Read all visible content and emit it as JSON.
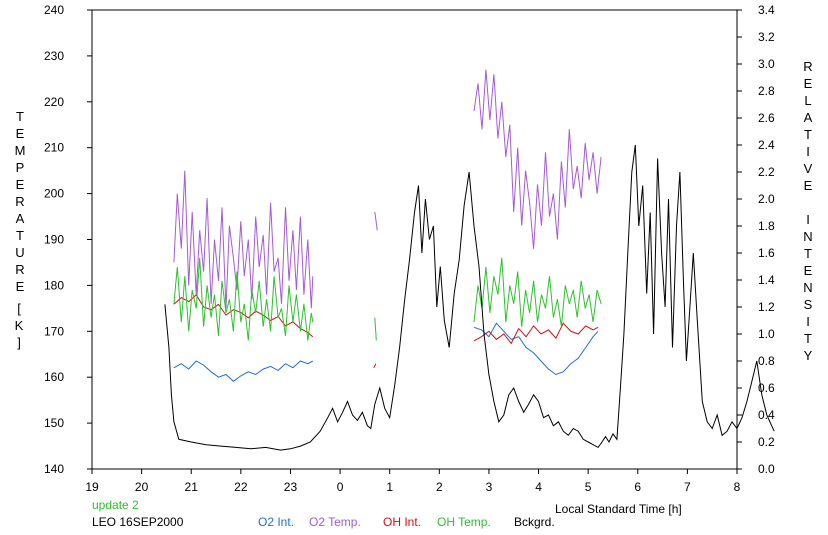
{
  "chart_data": {
    "type": "line",
    "xlabel": "Local Standard Time [h]",
    "ylabel_left": "TEMPERATURE",
    "ylabel_left_unit": "[K]",
    "ylabel_right": "RELATIVE INTENSITY",
    "x_range": [
      19,
      32
    ],
    "x_tick_values": [
      19,
      20,
      21,
      22,
      23,
      24,
      25,
      26,
      27,
      28,
      29,
      30,
      31,
      32
    ],
    "x_tick_labels": [
      "19",
      "20",
      "21",
      "22",
      "23",
      "0",
      "1",
      "2",
      "3",
      "4",
      "5",
      "6",
      "7",
      "8"
    ],
    "ylim_left": [
      140,
      240
    ],
    "y_ticks_left": [
      140,
      150,
      160,
      170,
      180,
      190,
      200,
      210,
      220,
      230,
      240
    ],
    "ylim_right": [
      0,
      3.4
    ],
    "y_ticks_right": [
      "0.0",
      "0.2",
      "0.4",
      "0.6",
      "0.8",
      "1.0",
      "1.2",
      "1.4",
      "1.6",
      "1.8",
      "2.0",
      "2.2",
      "2.4",
      "2.6",
      "2.8",
      "3.0",
      "3.2",
      "3.4"
    ],
    "footer": {
      "update": "update 2",
      "site_date": "LEO 16SEP2000"
    },
    "colors": {
      "o2_int": "#1f6fd0",
      "o2_temp": "#a35bd6",
      "oh_int": "#d01010",
      "oh_temp": "#2fbf2f",
      "bckgrd": "#000000",
      "update": "#2fbf2f"
    },
    "series": [
      {
        "name": "O2 Int.",
        "axis": "right",
        "segments": [
          {
            "x": [
              20.65,
              20.8,
              20.95,
              21.1,
              21.25,
              21.4,
              21.55,
              21.7,
              21.85,
              22.0,
              22.15,
              22.3,
              22.45,
              22.6,
              22.75,
              22.9,
              23.05,
              23.2,
              23.35,
              23.45
            ],
            "y": [
              0.75,
              0.78,
              0.74,
              0.8,
              0.77,
              0.72,
              0.68,
              0.7,
              0.65,
              0.69,
              0.72,
              0.7,
              0.74,
              0.76,
              0.73,
              0.78,
              0.75,
              0.8,
              0.78,
              0.8
            ]
          },
          {
            "x": [
              26.7,
              26.85,
              27.0,
              27.15,
              27.3,
              27.45,
              27.6,
              27.75,
              27.9,
              28.05,
              28.2,
              28.35,
              28.5,
              28.65,
              28.8,
              28.95,
              29.1,
              29.2
            ],
            "y": [
              1.05,
              1.03,
              0.98,
              1.08,
              1.02,
              0.96,
              0.98,
              0.9,
              0.86,
              0.8,
              0.74,
              0.7,
              0.72,
              0.78,
              0.82,
              0.9,
              0.98,
              1.02
            ]
          }
        ]
      },
      {
        "name": "O2 Temp.",
        "axis": "left",
        "segments": [
          {
            "x": [
              20.65,
              20.72,
              20.8,
              20.87,
              20.95,
              21.02,
              21.1,
              21.17,
              21.25,
              21.32,
              21.4,
              21.47,
              21.55,
              21.62,
              21.7,
              21.77,
              21.85,
              21.92,
              22.0,
              22.07,
              22.15,
              22.22,
              22.3,
              22.37,
              22.45,
              22.52,
              22.6,
              22.67,
              22.75,
              22.82,
              22.9,
              22.97,
              23.05,
              23.12,
              23.2,
              23.27,
              23.35,
              23.42,
              23.45
            ],
            "y": [
              185,
              200,
              188,
              205,
              180,
              196,
              178,
              192,
              183,
              199,
              176,
              190,
              181,
              197,
              175,
              193,
              186,
              179,
              194,
              182,
              190,
              177,
              195,
              184,
              191,
              178,
              198,
              183,
              186,
              176,
              197,
              181,
              192,
              179,
              195,
              178,
              190,
              175,
              182
            ]
          },
          {
            "x": [
              24.7,
              24.75
            ],
            "y": [
              196,
              192
            ]
          },
          {
            "x": [
              26.7,
              26.78,
              26.86,
              26.94,
              27.02,
              27.1,
              27.18,
              27.26,
              27.34,
              27.42,
              27.5,
              27.58,
              27.66,
              27.74,
              27.82,
              27.9,
              27.98,
              28.06,
              28.14,
              28.22,
              28.3,
              28.38,
              28.46,
              28.54,
              28.62,
              28.7,
              28.78,
              28.86,
              28.94,
              29.02,
              29.1,
              29.18,
              29.26
            ],
            "y": [
              218,
              224,
              214,
              227,
              216,
              226,
              212,
              220,
              208,
              215,
              196,
              210,
              193,
              205,
              198,
              188,
              202,
              193,
              209,
              195,
              200,
              190,
              207,
              197,
              214,
              201,
              206,
              199,
              211,
              203,
              209,
              200,
              208
            ]
          }
        ]
      },
      {
        "name": "OH Int.",
        "axis": "right",
        "segments": [
          {
            "x": [
              20.65,
              20.8,
              20.95,
              21.1,
              21.25,
              21.4,
              21.55,
              21.7,
              21.85,
              22.0,
              22.15,
              22.3,
              22.45,
              22.6,
              22.75,
              22.9,
              23.05,
              23.2,
              23.35,
              23.45
            ],
            "y": [
              1.22,
              1.27,
              1.24,
              1.29,
              1.2,
              1.18,
              1.22,
              1.14,
              1.18,
              1.16,
              1.12,
              1.17,
              1.14,
              1.1,
              1.13,
              1.06,
              1.09,
              1.04,
              1.01,
              0.98
            ]
          },
          {
            "x": [
              24.68,
              24.72
            ],
            "y": [
              0.75,
              0.78
            ]
          },
          {
            "x": [
              26.7,
              26.85,
              27.0,
              27.15,
              27.3,
              27.45,
              27.6,
              27.75,
              27.9,
              28.05,
              28.2,
              28.35,
              28.5,
              28.65,
              28.8,
              28.95,
              29.1,
              29.2
            ],
            "y": [
              0.95,
              0.98,
              1.02,
              0.96,
              1.0,
              0.93,
              1.04,
              0.98,
              1.06,
              1.0,
              1.03,
              0.97,
              1.08,
              1.02,
              1.0,
              1.06,
              1.03,
              1.05
            ]
          }
        ]
      },
      {
        "name": "OH Temp.",
        "axis": "left",
        "segments": [
          {
            "x": [
              20.65,
              20.72,
              20.8,
              20.87,
              20.95,
              21.02,
              21.1,
              21.17,
              21.25,
              21.32,
              21.4,
              21.47,
              21.55,
              21.62,
              21.7,
              21.77,
              21.85,
              21.92,
              22.0,
              22.07,
              22.15,
              22.22,
              22.3,
              22.37,
              22.45,
              22.52,
              22.6,
              22.67,
              22.75,
              22.82,
              22.9,
              22.97,
              23.05,
              23.12,
              23.2,
              23.27,
              23.35,
              23.42,
              23.45
            ],
            "y": [
              176,
              184,
              172,
              182,
              170,
              179,
              175,
              186,
              171,
              180,
              173,
              178,
              169,
              181,
              174,
              177,
              170,
              183,
              172,
              176,
              168,
              179,
              174,
              181,
              171,
              177,
              170,
              182,
              173,
              175,
              169,
              180,
              172,
              178,
              170,
              176,
              168,
              174,
              172
            ]
          },
          {
            "x": [
              24.7,
              24.73
            ],
            "y": [
              173,
              168
            ]
          },
          {
            "x": [
              26.7,
              26.78,
              26.86,
              26.94,
              27.02,
              27.1,
              27.18,
              27.26,
              27.34,
              27.42,
              27.5,
              27.58,
              27.66,
              27.74,
              27.82,
              27.9,
              27.98,
              28.06,
              28.14,
              28.22,
              28.3,
              28.38,
              28.46,
              28.54,
              28.62,
              28.7,
              28.78,
              28.86,
              28.94,
              29.02,
              29.1,
              29.18,
              29.26
            ],
            "y": [
              172,
              180,
              175,
              184,
              174,
              182,
              178,
              186,
              172,
              180,
              176,
              183,
              171,
              179,
              174,
              181,
              172,
              178,
              175,
              182,
              173,
              177,
              171,
              180,
              176,
              179,
              173,
              181,
              175,
              178,
              172,
              179,
              176
            ]
          }
        ]
      },
      {
        "name": "Bckgrd.",
        "axis": "right",
        "segments": [
          {
            "x": [
              20.47,
              20.55,
              20.6,
              20.65,
              20.75,
              21.0,
              21.3,
              21.6,
              21.9,
              22.2,
              22.5,
              22.8,
              23.0,
              23.2,
              23.4,
              23.6,
              23.75,
              23.85,
              23.95,
              24.05,
              24.15,
              24.25,
              24.35,
              24.45,
              24.55,
              24.62,
              24.7,
              24.8,
              24.9,
              25.0,
              25.1,
              25.2,
              25.3,
              25.4,
              25.5,
              25.58,
              25.65,
              25.72,
              25.8,
              25.88,
              25.95,
              26.02,
              26.1,
              26.2,
              26.3,
              26.4,
              26.5,
              26.6,
              26.7,
              26.8,
              26.9,
              27.0,
              27.1,
              27.2,
              27.3,
              27.4,
              27.5,
              27.6,
              27.7,
              27.8,
              27.9,
              28.0,
              28.1,
              28.2,
              28.3,
              28.4,
              28.5,
              28.6,
              28.7,
              28.8,
              28.9,
              29.0,
              29.1,
              29.2,
              29.28,
              29.35,
              29.42,
              29.5,
              29.58,
              29.65,
              29.72,
              29.8,
              29.88,
              29.95,
              30.02,
              30.1,
              30.18,
              30.25,
              30.32,
              30.4,
              30.48,
              30.55,
              30.62,
              30.7,
              30.78,
              30.85,
              30.92,
              30.98,
              31.05,
              31.12,
              31.2,
              31.3,
              31.4,
              31.5,
              31.6,
              31.7,
              31.8,
              31.9,
              32.0,
              32.1,
              32.2,
              32.3,
              32.4,
              32.5,
              32.6,
              32.7,
              32.75
            ],
            "y": [
              1.22,
              0.9,
              0.55,
              0.35,
              0.22,
              0.2,
              0.18,
              0.17,
              0.16,
              0.15,
              0.16,
              0.14,
              0.15,
              0.17,
              0.2,
              0.28,
              0.38,
              0.45,
              0.35,
              0.42,
              0.5,
              0.4,
              0.36,
              0.42,
              0.32,
              0.3,
              0.48,
              0.6,
              0.45,
              0.38,
              0.62,
              0.9,
              1.25,
              1.55,
              1.9,
              2.1,
              1.6,
              2.0,
              1.7,
              1.8,
              1.2,
              1.5,
              1.1,
              0.9,
              1.3,
              1.55,
              1.95,
              2.2,
              1.8,
              1.5,
              1.0,
              0.7,
              0.5,
              0.35,
              0.4,
              0.55,
              0.6,
              0.5,
              0.42,
              0.48,
              0.55,
              0.5,
              0.38,
              0.4,
              0.32,
              0.35,
              0.28,
              0.25,
              0.3,
              0.28,
              0.22,
              0.2,
              0.18,
              0.16,
              0.2,
              0.24,
              0.2,
              0.26,
              0.22,
              0.6,
              1.0,
              1.6,
              2.2,
              2.4,
              1.8,
              2.1,
              1.3,
              1.9,
              1.0,
              2.3,
              1.6,
              1.2,
              2.0,
              0.9,
              1.8,
              2.2,
              1.4,
              0.8,
              1.2,
              1.6,
              1.1,
              0.5,
              0.35,
              0.3,
              0.4,
              0.25,
              0.28,
              0.35,
              0.3,
              0.38,
              0.5,
              0.65,
              0.8,
              0.55,
              0.4,
              0.32,
              0.28
            ]
          }
        ]
      }
    ]
  }
}
